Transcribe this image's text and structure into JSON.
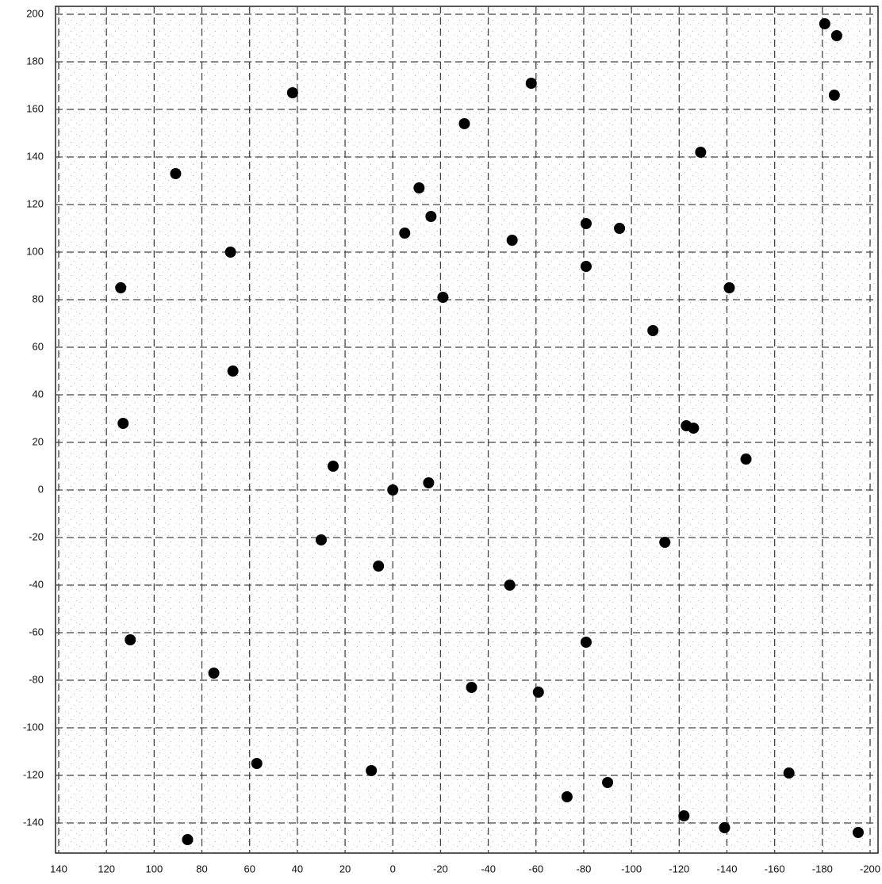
{
  "chart_data": {
    "type": "scatter",
    "x": [
      0,
      -30,
      -58,
      -81,
      -95,
      -81,
      -129,
      -141,
      -185,
      -186,
      -181,
      -109,
      86,
      -90,
      -122,
      -195,
      113,
      67,
      75,
      -61,
      -114,
      -148,
      25,
      -15,
      -11,
      -16,
      -5,
      91,
      68,
      -21,
      -123,
      -126,
      57,
      30,
      -49,
      -81,
      110,
      -33,
      6,
      114,
      -50,
      -166,
      42,
      -73,
      -139,
      9
    ],
    "values": [
      0,
      154,
      171,
      112,
      110,
      94,
      142,
      85,
      166,
      191,
      196,
      67,
      -147,
      -123,
      -137,
      -144,
      28,
      50,
      -77,
      -85,
      -22,
      13,
      10,
      3,
      127,
      115,
      108,
      133,
      100,
      81,
      27,
      26,
      -115,
      -21,
      -40,
      -64,
      -63,
      -83,
      -32,
      85,
      105,
      -119,
      167,
      -129,
      -142,
      -118
    ],
    "color": "#000000",
    "xlim": [
      140,
      -200
    ],
    "ylim": [
      200,
      -152
    ],
    "xticks": [
      140,
      120,
      100,
      80,
      60,
      40,
      20,
      0,
      -20,
      -40,
      -60,
      -80,
      -100,
      -120,
      -140,
      -160,
      -180,
      -200
    ],
    "yticks": [
      200,
      180,
      160,
      140,
      120,
      100,
      80,
      60,
      40,
      20,
      0,
      -20,
      -40,
      -60,
      -80,
      -100,
      -120,
      -140
    ],
    "grid": true
  }
}
